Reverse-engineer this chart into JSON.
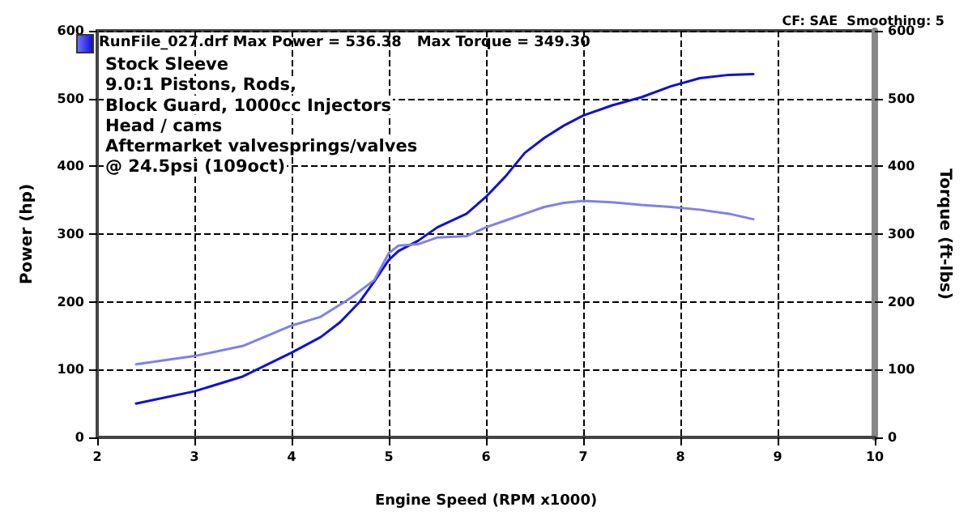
{
  "chart_data": {
    "type": "line",
    "subtitle": "CF: SAE  Smoothing: 5",
    "xlabel": "Engine Speed (RPM x1000)",
    "ylabel": "Power (hp)",
    "y2label": "Torque (ft-lbs)",
    "annotations": [
      "RunFile_027.drf Max Power = 536.38   Max Torque = 349.30",
      "Stock Sleeve",
      "9.0:1 Pistons, Rods,",
      "Block Guard, 1000cc Injectors",
      "Head / cams",
      "Aftermarket valvesprings/valves",
      "@ 24.5psi (109oct)"
    ],
    "series": [
      {
        "color": "#1010d8",
        "x": [
          2.4,
          3.0,
          3.5,
          4.0,
          4.3,
          4.5,
          4.7,
          4.85,
          5.0,
          5.1,
          5.3,
          5.5,
          5.8,
          6.0,
          6.2,
          6.4,
          6.6,
          6.8,
          7.0,
          7.3,
          7.6,
          7.9,
          8.2,
          8.5,
          8.75
        ],
        "values": [
          50,
          68,
          90,
          125,
          148,
          170,
          200,
          230,
          262,
          275,
          290,
          310,
          330,
          355,
          385,
          420,
          442,
          460,
          475,
          490,
          502,
          518,
          530,
          535,
          536
        ]
      },
      {
        "color": "#8080ec",
        "axis": "y2",
        "x": [
          2.4,
          3.0,
          3.5,
          4.0,
          4.3,
          4.6,
          4.85,
          5.0,
          5.1,
          5.3,
          5.5,
          5.8,
          6.0,
          6.2,
          6.4,
          6.6,
          6.8,
          7.0,
          7.3,
          7.6,
          7.9,
          8.2,
          8.5,
          8.75
        ],
        "values": [
          108,
          120,
          135,
          165,
          178,
          205,
          232,
          272,
          283,
          285,
          295,
          297,
          310,
          320,
          330,
          340,
          346,
          349,
          347,
          343,
          340,
          336,
          330,
          322
        ]
      }
    ],
    "xlim": [
      2,
      10
    ],
    "xticks": [
      2,
      3,
      4,
      5,
      6,
      7,
      8,
      9,
      10
    ],
    "ylim": [
      0,
      600
    ],
    "yticks": [
      0,
      100,
      200,
      300,
      400,
      500,
      600
    ],
    "y2lim": [
      0,
      600
    ],
    "y2ticks": [
      0,
      100,
      200,
      300,
      400,
      500,
      600
    ],
    "grid": true,
    "line_style": "solid",
    "marker": "none"
  }
}
